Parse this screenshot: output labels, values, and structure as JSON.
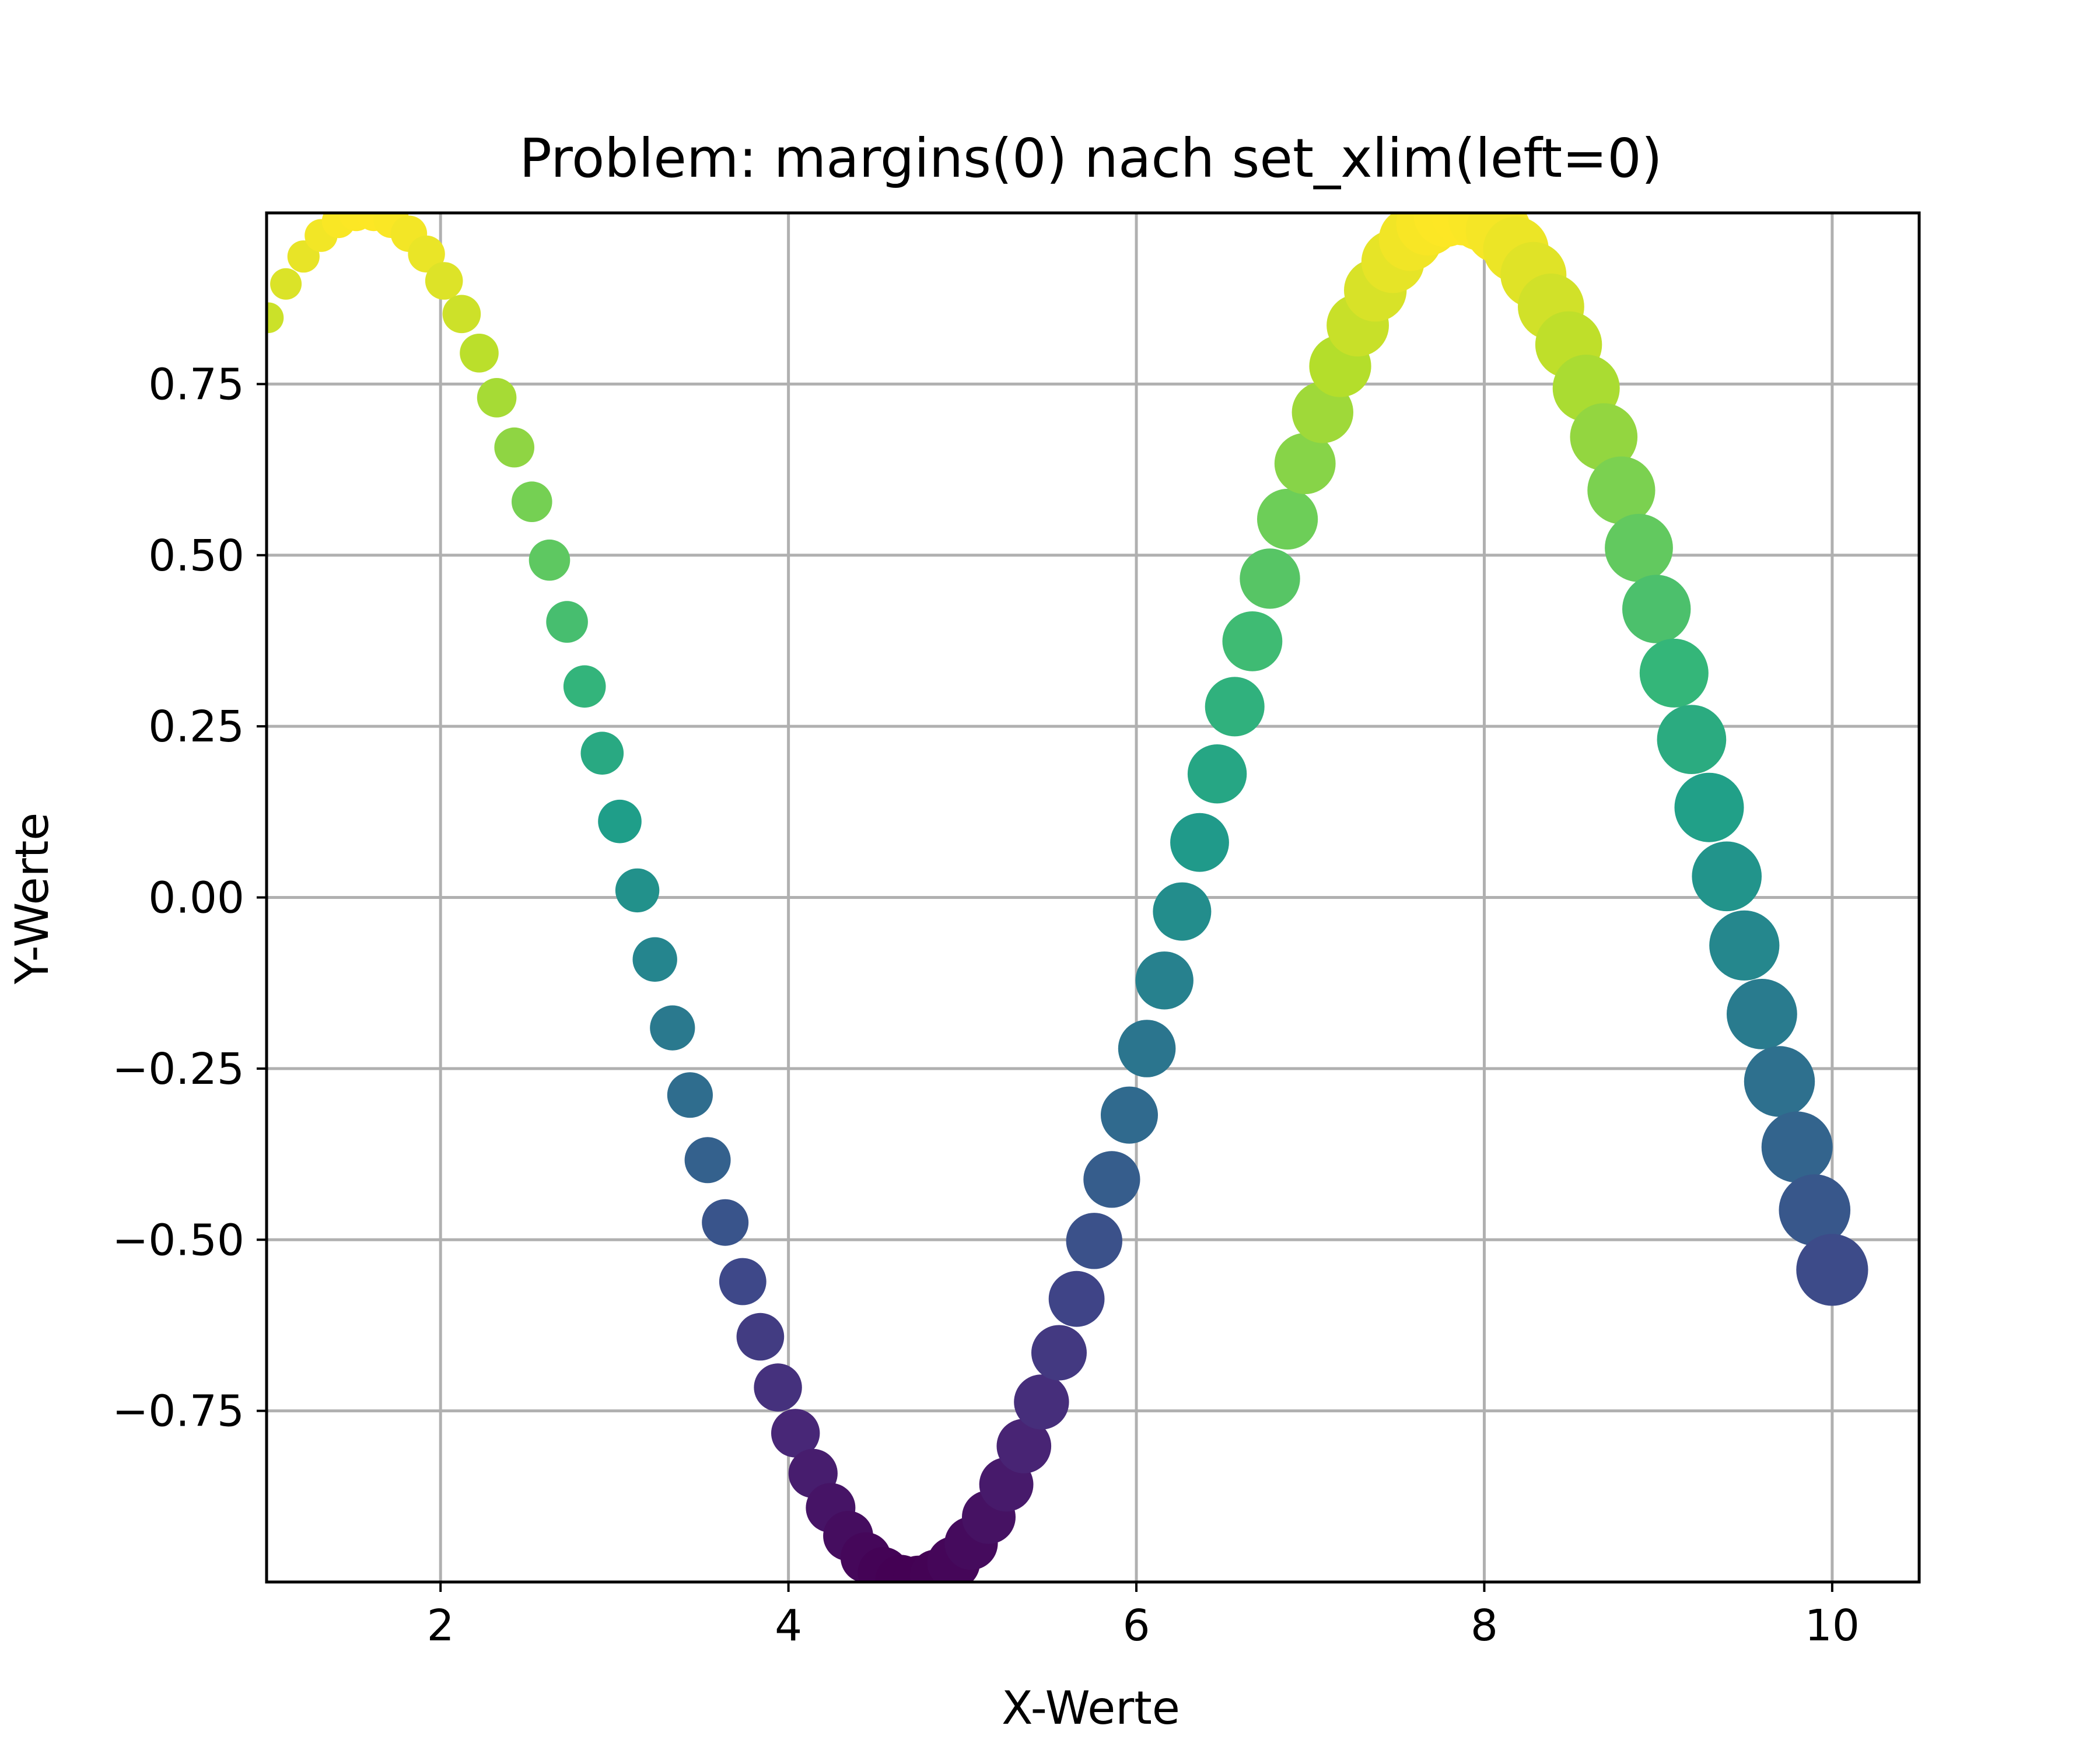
{
  "chart_data": {
    "type": "scatter",
    "title": "Problem: margins(0) nach set_xlim(left=0)",
    "xlabel": "X-Werte",
    "ylabel": "Y-Werte",
    "xlim": [
      1.0,
      10.5
    ],
    "ylim": [
      -1.0,
      1.0
    ],
    "x_ticks": [
      2,
      4,
      6,
      8,
      10
    ],
    "x_tick_labels": [
      "2",
      "4",
      "6",
      "8",
      "10"
    ],
    "y_ticks": [
      -0.75,
      -0.5,
      -0.25,
      0.0,
      0.25,
      0.5,
      0.75
    ],
    "y_tick_labels": [
      "−0.75",
      "−0.50",
      "−0.25",
      "0.00",
      "0.25",
      "0.50",
      "0.75"
    ],
    "grid": true,
    "colormap": "viridis",
    "color_encodes": "y",
    "size_encodes": "x",
    "function": "y = sin(x)",
    "x_range": [
      0.0,
      10.0
    ],
    "point_count": 100,
    "colors": {
      "viridis": [
        "#440154",
        "#482878",
        "#3e4989",
        "#31688e",
        "#26828e",
        "#1f9e89",
        "#35b779",
        "#6ece58",
        "#b5de2b",
        "#fde725"
      ]
    }
  }
}
